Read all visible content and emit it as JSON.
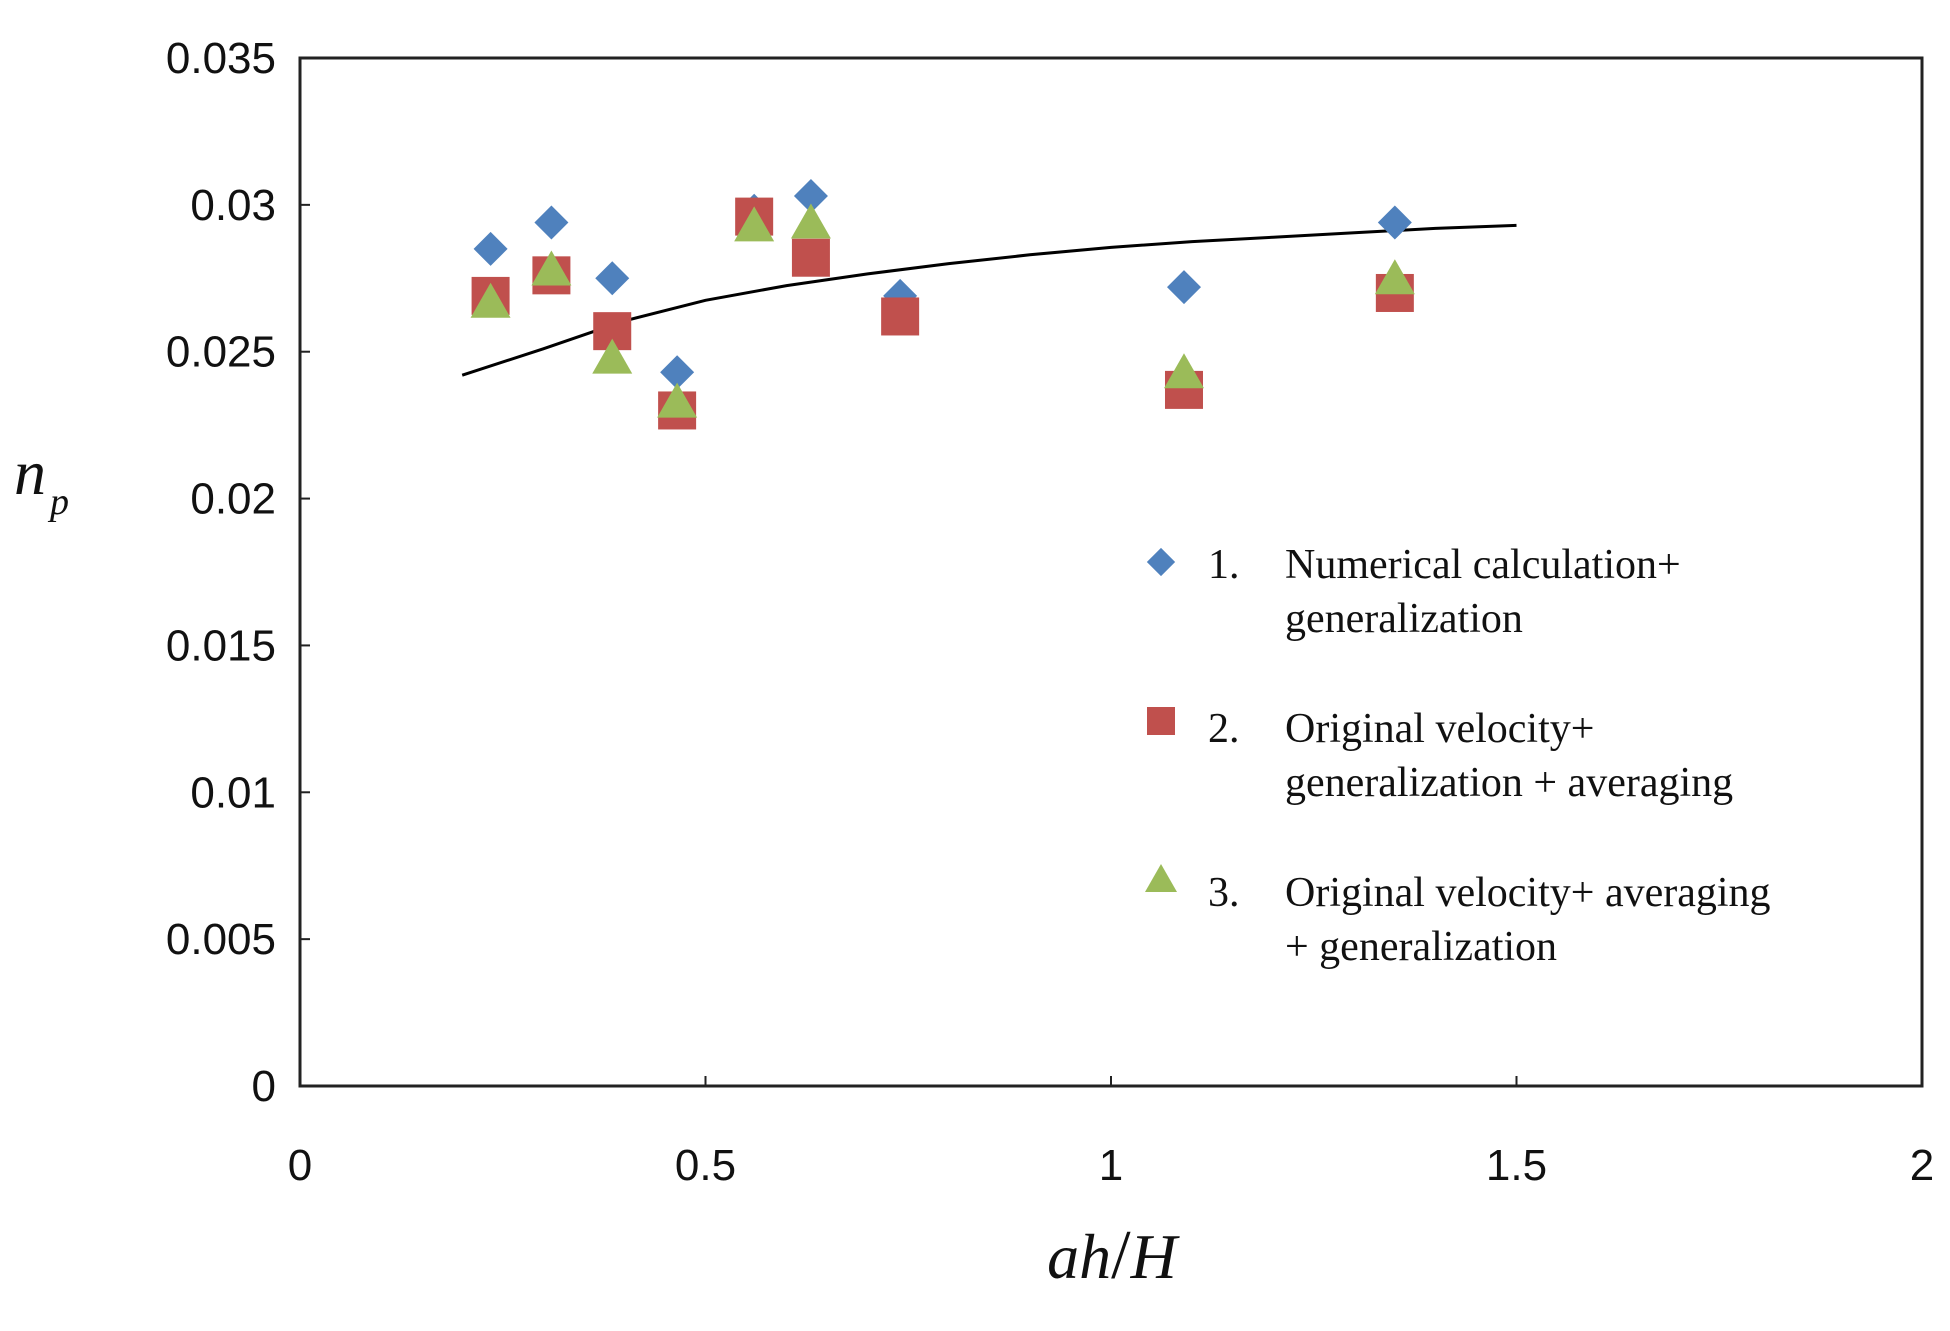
{
  "chart_data": {
    "type": "scatter",
    "title": "",
    "xlabel": {
      "main": "ah",
      "slash": "/",
      "tail": "H"
    },
    "ylabel": {
      "main": "n",
      "sub": "p"
    },
    "xlim": [
      0,
      2
    ],
    "ylim": [
      0,
      0.035
    ],
    "xticks": [
      0,
      0.5,
      1,
      1.5,
      2
    ],
    "xtick_labels": [
      "0",
      "0.5",
      "1",
      "1.5",
      "2"
    ],
    "yticks": [
      0,
      0.005,
      0.01,
      0.015,
      0.02,
      0.025,
      0.03,
      0.035
    ],
    "ytick_labels": [
      "0",
      "0.005",
      "0.01",
      "0.015",
      "0.02",
      "0.025",
      "0.03",
      "0.035"
    ],
    "grid": false,
    "legend_position": "right-middle",
    "series": [
      {
        "name": "Numerical calculation+ generalization",
        "legend_num": "1.",
        "legend_lines": [
          "Numerical calculation+",
          "generalization"
        ],
        "marker": "diamond",
        "color": "#4F81BD",
        "x": [
          0.235,
          0.31,
          0.385,
          0.465,
          0.56,
          0.63,
          0.74,
          1.09,
          1.35
        ],
        "y": [
          0.0285,
          0.0294,
          0.0275,
          0.0243,
          0.0298,
          0.0303,
          0.0269,
          0.0272,
          0.0294
        ]
      },
      {
        "name": "Original velocity+ generalization + averaging",
        "legend_num": "2.",
        "legend_lines": [
          "Original velocity+",
          "generalization + averaging"
        ],
        "marker": "square",
        "color": "#C0504D",
        "x": [
          0.235,
          0.31,
          0.385,
          0.465,
          0.56,
          0.63,
          0.74,
          1.09,
          1.35
        ],
        "y": [
          0.0269,
          0.0276,
          0.0257,
          0.023,
          0.0296,
          0.0282,
          0.0262,
          0.0237,
          0.027
        ]
      },
      {
        "name": "Original velocity+ averaging + generalization",
        "legend_num": "3.",
        "legend_lines": [
          "Original velocity+ averaging",
          "+ generalization"
        ],
        "marker": "triangle",
        "color": "#9BBB59",
        "x": [
          0.235,
          0.31,
          0.385,
          0.465,
          0.56,
          0.63,
          1.09,
          1.35
        ],
        "y": [
          0.0267,
          0.0278,
          0.0248,
          0.0233,
          0.0293,
          0.0294,
          0.0243,
          0.0275
        ]
      }
    ],
    "fit_curve": {
      "color": "#000000",
      "x": [
        0.2,
        0.3,
        0.4,
        0.5,
        0.6,
        0.7,
        0.8,
        0.9,
        1.0,
        1.1,
        1.2,
        1.3,
        1.4,
        1.5
      ],
      "y": [
        0.0242,
        0.0251,
        0.02605,
        0.02675,
        0.02725,
        0.02765,
        0.028,
        0.0283,
        0.02855,
        0.02875,
        0.0289,
        0.02905,
        0.0292,
        0.0293
      ]
    }
  }
}
